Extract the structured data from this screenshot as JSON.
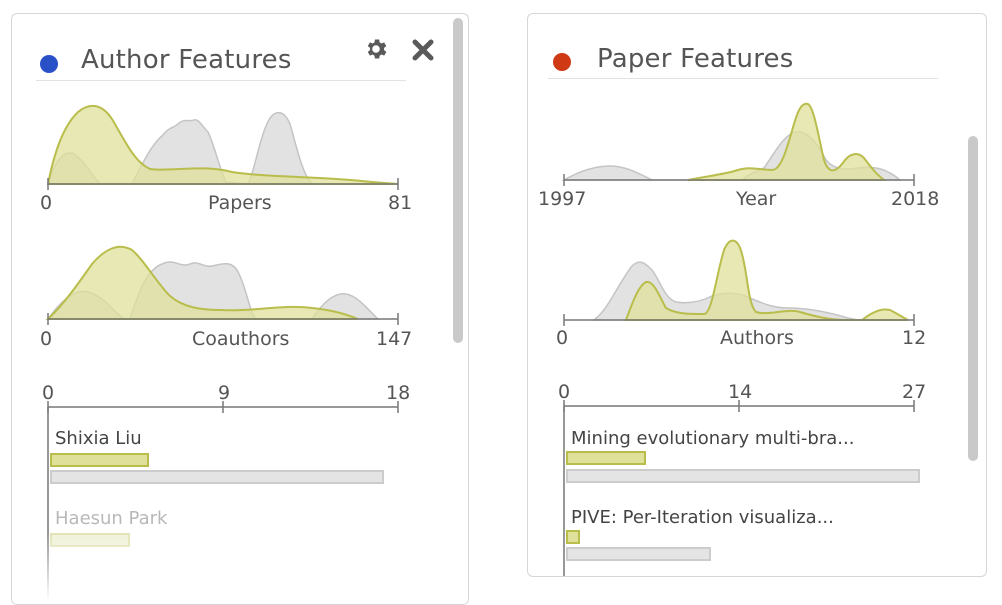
{
  "panels": {
    "author": {
      "title": "Author Features",
      "dot_color": "#2a50c8",
      "icons": [
        "gear-icon",
        "close-icon"
      ],
      "histograms": [
        {
          "label": "Papers",
          "min": "0",
          "max": "81"
        },
        {
          "label": "Coauthors",
          "min": "0",
          "max": "147"
        }
      ],
      "bar_axis": {
        "ticks": [
          "0",
          "9",
          "18"
        ]
      },
      "bars": [
        {
          "label": "Shixia Liu",
          "value": 6,
          "total": 18
        },
        {
          "label": "Haesun Park",
          "value": 5,
          "total": null
        }
      ]
    },
    "paper": {
      "title": "Paper Features",
      "dot_color": "#cf3a14",
      "histograms": [
        {
          "label": "Year",
          "min": "1997",
          "max": "2018"
        },
        {
          "label": "Authors",
          "min": "0",
          "max": "12"
        }
      ],
      "bar_axis": {
        "ticks": [
          "0",
          "14",
          "27"
        ]
      },
      "bars": [
        {
          "label": "Mining evolutionary multi-bra...",
          "value": 5,
          "total": 27
        },
        {
          "label": "PIVE: Per-Iteration visualiza...",
          "value": 1,
          "total": 11
        }
      ]
    }
  },
  "colors": {
    "selected_fill": "#dfe09a",
    "selected_stroke": "#b9bd4c",
    "overall_fill": "#e2e2e2",
    "overall_stroke": "#c4c4c4"
  }
}
